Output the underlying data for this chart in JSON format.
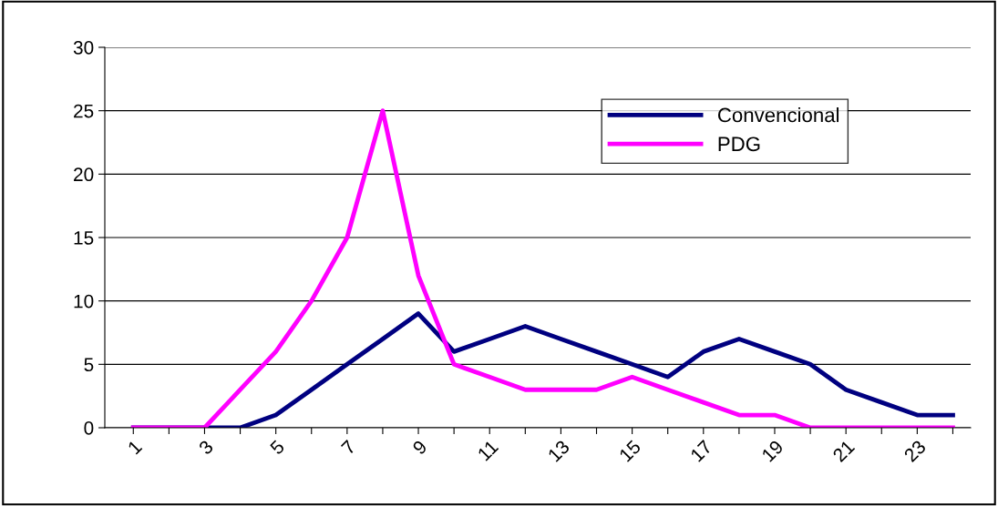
{
  "chart_data": {
    "type": "line",
    "categories": [
      "1",
      null,
      "3",
      null,
      "5",
      null,
      "7",
      null,
      "9",
      null,
      "11",
      null,
      "13",
      null,
      "15",
      null,
      "17",
      null,
      "19",
      null,
      "21",
      null,
      "23",
      null
    ],
    "series": [
      {
        "name": "Convencional",
        "color": "#000080",
        "values": [
          0,
          0,
          0,
          0,
          1,
          3,
          5,
          7,
          9,
          6,
          7,
          8,
          7,
          6,
          5,
          4,
          6,
          7,
          6,
          5,
          3,
          2,
          1,
          1
        ]
      },
      {
        "name": "PDG",
        "color": "#ff00ff",
        "values": [
          0,
          0,
          0,
          3,
          6,
          10,
          15,
          25,
          12,
          5,
          4,
          3,
          3,
          3,
          4,
          3,
          2,
          1,
          1,
          0,
          0,
          0,
          0,
          0
        ]
      }
    ],
    "ylim": [
      0,
      30
    ],
    "yticks": [
      0,
      5,
      10,
      15,
      20,
      25,
      30
    ],
    "grid": "y",
    "legend": "top right",
    "marker": "none",
    "line_style": "solid"
  }
}
